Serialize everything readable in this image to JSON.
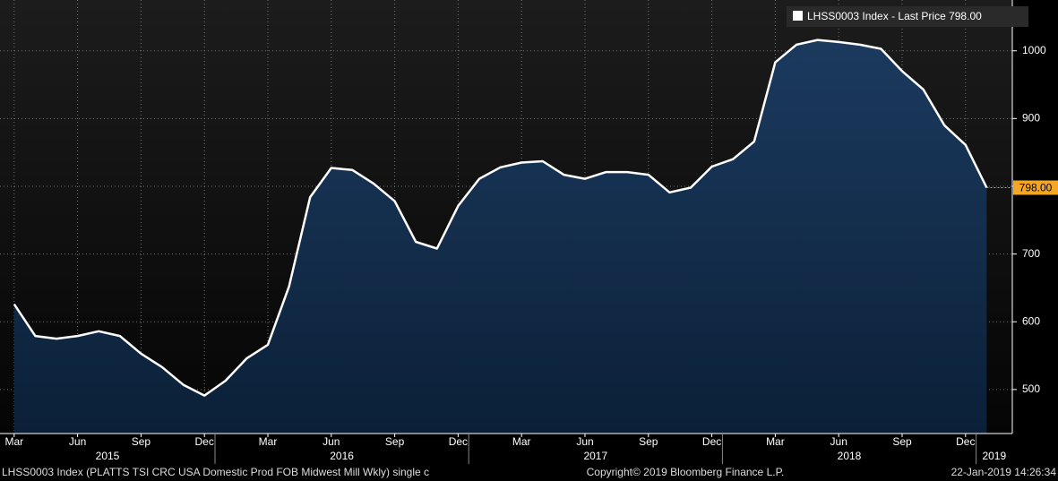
{
  "chart_data": {
    "type": "area",
    "series": [
      {
        "name": "LHSS0003 Index - Last Price 798.00",
        "color": "#ffffff",
        "x": [
          "2015-03",
          "2015-04",
          "2015-05",
          "2015-06",
          "2015-07",
          "2015-08",
          "2015-09",
          "2015-10",
          "2015-11",
          "2015-12",
          "2016-01",
          "2016-02",
          "2016-03",
          "2016-04",
          "2016-05",
          "2016-06",
          "2016-07",
          "2016-08",
          "2016-09",
          "2016-10",
          "2016-11",
          "2016-12",
          "2017-01",
          "2017-02",
          "2017-03",
          "2017-04",
          "2017-05",
          "2017-06",
          "2017-07",
          "2017-08",
          "2017-09",
          "2017-10",
          "2017-11",
          "2017-12",
          "2018-01",
          "2018-02",
          "2018-03",
          "2018-04",
          "2018-05",
          "2018-06",
          "2018-07",
          "2018-08",
          "2018-09",
          "2018-10",
          "2018-11",
          "2018-12",
          "2019-01"
        ],
        "values": [
          626,
          579,
          575,
          579,
          586,
          579,
          553,
          533,
          507,
          491,
          513,
          546,
          566,
          652,
          784,
          827,
          824,
          804,
          778,
          718,
          708,
          771,
          811,
          828,
          835,
          837,
          817,
          811,
          821,
          821,
          817,
          791,
          798,
          829,
          840,
          866,
          983,
          1009,
          1016,
          1013,
          1009,
          1003,
          970,
          943,
          890,
          861,
          798
        ],
        "value_labels": [
          null,
          null,
          null,
          null,
          null,
          null,
          null,
          null,
          null,
          null,
          null,
          null,
          null,
          null,
          null,
          null,
          null,
          null,
          null,
          null,
          null,
          null,
          null,
          null,
          null,
          null,
          null,
          null,
          null,
          null,
          null,
          null,
          null,
          null,
          null,
          null,
          null,
          null,
          null,
          null,
          null,
          null,
          null,
          null,
          null,
          null,
          "798.00"
        ]
      }
    ],
    "ylim": [
      435,
      1075
    ],
    "yticks": [
      500,
      600,
      700,
      800,
      900,
      1000
    ],
    "xticks": [
      {
        "value": "2015-03",
        "label": "Mar"
      },
      {
        "value": "2015-06",
        "label": "Jun"
      },
      {
        "value": "2015-09",
        "label": "Sep"
      },
      {
        "value": "2015-12",
        "label": "Dec"
      },
      {
        "value": "2016-03",
        "label": "Mar"
      },
      {
        "value": "2016-06",
        "label": "Jun"
      },
      {
        "value": "2016-09",
        "label": "Sep"
      },
      {
        "value": "2016-12",
        "label": "Dec"
      },
      {
        "value": "2017-03",
        "label": "Mar"
      },
      {
        "value": "2017-06",
        "label": "Jun"
      },
      {
        "value": "2017-09",
        "label": "Sep"
      },
      {
        "value": "2017-12",
        "label": "Dec"
      },
      {
        "value": "2018-03",
        "label": "Mar"
      },
      {
        "value": "2018-06",
        "label": "Jun"
      },
      {
        "value": "2018-09",
        "label": "Sep"
      },
      {
        "value": "2018-12",
        "label": "Dec"
      }
    ],
    "year_labels": [
      2015,
      2016,
      2017,
      2018,
      2019
    ],
    "grid": true,
    "footer": {
      "left": "LHSS0003 Index (PLATTS TSI CRC USA Domestic Prod FOB Midwest Mill Wkly) single c",
      "center": "Copyright© 2019 Bloomberg Finance L.P.",
      "right": "22-Jan-2019 14:26:34"
    }
  }
}
